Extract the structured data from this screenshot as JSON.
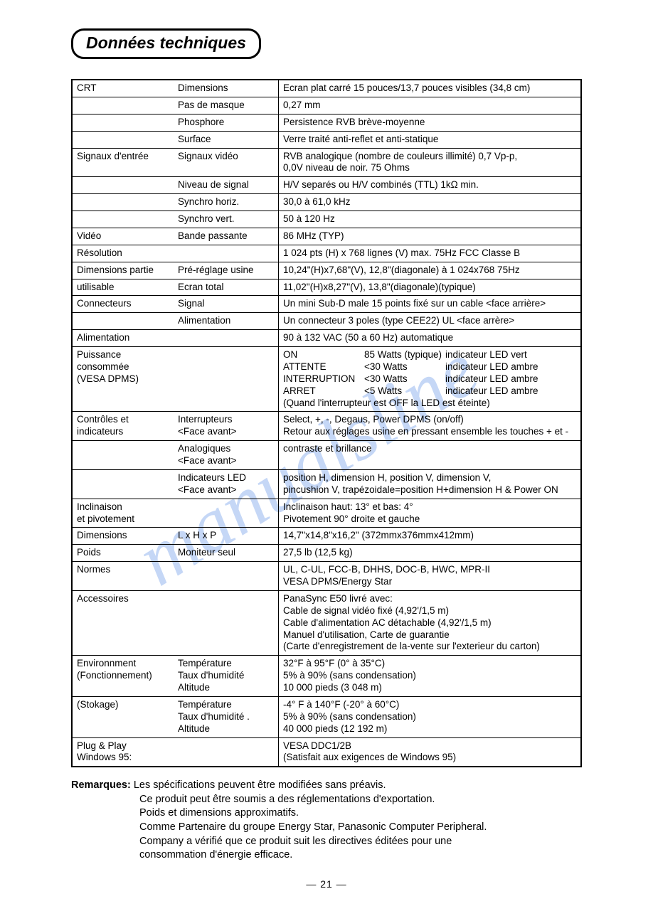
{
  "title": "Données techniques",
  "watermark": "manualsline",
  "rows": [
    {
      "c1": "CRT",
      "c2": "Dimensions",
      "c3": "Ecran plat carré 15 pouces/13,7 pouces visibles (34,8 cm)"
    },
    {
      "c1": "",
      "c2": "Pas de masque",
      "c3": "0,27 mm",
      "c1NoTop": true
    },
    {
      "c1": "",
      "c2": "Phosphore",
      "c3": "Persistence RVB brève-moyenne",
      "c1NoTop": true
    },
    {
      "c1": "",
      "c2": "Surface",
      "c3": "Verre traité anti-reflet et anti-statique",
      "c1NoTop": true
    },
    {
      "c1": "Signaux d'entrée",
      "c2": "Signaux vidéo",
      "c3": "RVB analogique (nombre de couleurs illimité) 0,7 Vp-p,\n0,0V niveau de noir. 75 Ohms"
    },
    {
      "c1": "",
      "c2": "Niveau de signal",
      "c3": "H/V separés ou H/V combinés (TTL) 1kΩ min.",
      "c1NoTop": true
    },
    {
      "c1": "",
      "c2": "Synchro horiz.",
      "c3": "30,0 à 61,0 kHz",
      "c1NoTop": true
    },
    {
      "c1": "",
      "c2": "Synchro vert.",
      "c3": "50 à 120 Hz",
      "c1NoTop": true
    },
    {
      "c1": "Vidéo",
      "c2": "Bande passante",
      "c3": "86 MHz (TYP)"
    },
    {
      "c1": "Résolution",
      "c2": "",
      "c3": "1 024 pts (H) x 768 lignes (V) max. 75Hz FCC Classe B"
    },
    {
      "c1": "Dimensions partie",
      "c2": "Pré-réglage usine",
      "c3": "10,24\"(H)x7,68\"(V), 12,8\"(diagonale) à 1 024x768 75Hz"
    },
    {
      "c1": "utilisable",
      "c2": "Ecran total",
      "c3": "11,02\"(H)x8,27\"(V), 13,8\"(diagonale)(typique)",
      "c1NoTop": true
    },
    {
      "c1": "Connecteurs",
      "c2": "Signal",
      "c3": "Un mini Sub-D male 15 points fixé sur un cable <face arrière>"
    },
    {
      "c1": "",
      "c2": "Alimentation",
      "c3": "Un connecteur 3 poles (type CEE22) UL <face arrère>",
      "c1NoTop": true
    },
    {
      "c1": "Alimentation",
      "c2": "",
      "c3": "90 à 132 VAC (50 a 60 Hz) automatique"
    },
    {
      "c1": "Puissance\nconsommée\n(VESA DPMS)",
      "c2": "",
      "c3": "__POWER__"
    },
    {
      "c1": "Contrôles et\nindicateurs",
      "c2": "Interrupteurs\n<Face avant>",
      "c3": "Select, +, -, Degaus, Power DPMS (on/off)\nRetour aux réglages usine en pressant ensemble les touches + et -"
    },
    {
      "c1": "",
      "c2": "Analogiques\n<Face avant>",
      "c3": "contraste et brillance",
      "c1NoTop": true
    },
    {
      "c1": "",
      "c2": "Indicateurs LED\n<Face avant>",
      "c3": "position H, dimension H, position V, dimension V,\npincushion V, trapézoidale=position H+dimension H & Power ON",
      "c1NoTop": true
    },
    {
      "c1": "Inclinaison\net pivotement",
      "c2": "",
      "c3": "Inclinaison haut: 13° et bas: 4°\nPivotement 90° droite et gauche"
    },
    {
      "c1": "Dimensions",
      "c2": "L x H x P",
      "c3": "14,7\"x14,8\"x16,2\" (372mmx376mmx412mm)"
    },
    {
      "c1": "Poids",
      "c2": "Moniteur seul",
      "c3": "27,5 lb (12,5 kg)"
    },
    {
      "c1": "Normes",
      "c2": "",
      "c3": "UL, C-UL, FCC-B, DHHS, DOC-B, HWC, MPR-II\nVESA DPMS/Energy Star"
    },
    {
      "c1": "Accessoires",
      "c2": "",
      "c3": "PanaSync E50 livré avec:\nCable de signal vidéo fixé (4,92'/1,5 m)\nCable d'alimentation AC détachable (4,92'/1,5 m)\nManuel d'utilisation, Carte de guarantie\n(Carte d'enregistrement de la-vente sur l'exterieur du carton)"
    },
    {
      "c1": "Environnment\n(Fonctionnement)",
      "c2": "Température\nTaux d'humidité\nAltitude",
      "c3": "32°F à 95°F (0° à 35°C)\n5% à 90% (sans condensation)\n10 000 pieds (3 048 m)"
    },
    {
      "c1": "(Stokage)",
      "c2": "Température\nTaux d'humidité .\nAltitude",
      "c3": "-4° F à 140°F (-20° à 60°C)\n5% à 90% (sans condensation)\n40 000 pieds (12 192 m)",
      "c1NoTop": true
    },
    {
      "c1": "Plug & Play\nWindows 95:",
      "c2": "",
      "c3": "VESA DDC1/2B\n(Satisfait aux exigences de Windows 95)"
    }
  ],
  "power": {
    "lines": [
      {
        "mode": "ON",
        "watts": "85 Watts (typique)",
        "led": "indicateur LED vert"
      },
      {
        "mode": "ATTENTE",
        "watts": "<30 Watts",
        "led": "indicateur LED ambre"
      },
      {
        "mode": "INTERRUPTION",
        "watts": "<30 Watts",
        "led": "indicateur LED ambre"
      },
      {
        "mode": "ARRET",
        "watts": "<5 Watts",
        "led": "indicateur LED ambre"
      }
    ],
    "foot": "(Quand l'interrupteur est OFF la LED est éteinte)"
  },
  "remarks": {
    "label": "Remarques:",
    "first": "Les spécifications peuvent être modifiées sans préavis.",
    "lines": [
      "Ce produit peut être soumis a des réglementations d'exportation.",
      "Poids et dimensions approximatifs.",
      "Comme Partenaire du groupe Energy Star, Panasonic Computer Peripheral.",
      "Company a vérifié que ce produit suit les directives éditées pour une",
      "consommation d'énergie efficace."
    ]
  },
  "pagenum": "— 21 —"
}
